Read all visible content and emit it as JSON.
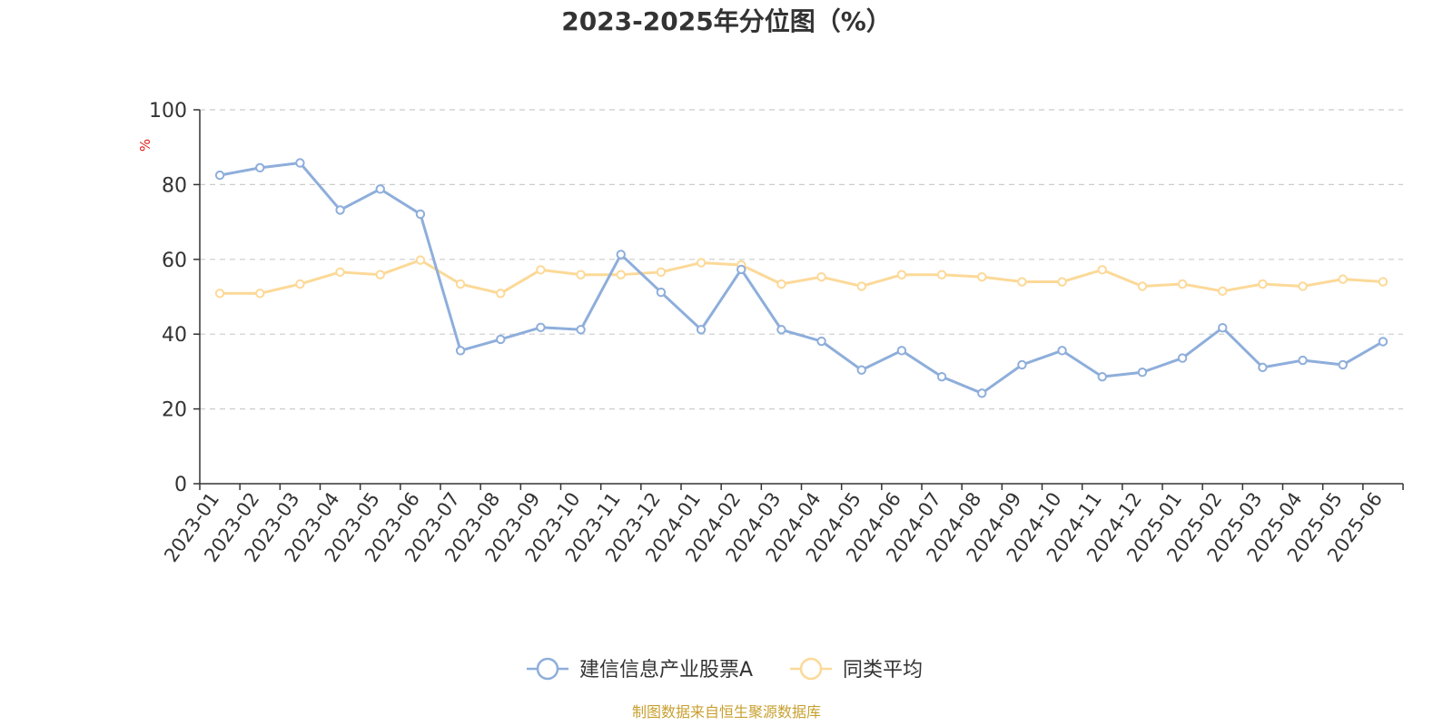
{
  "chart_data": {
    "type": "line",
    "title": "2023-2025年分位图（%）",
    "ylabel": "%",
    "xlabel": "",
    "ylim": [
      0,
      100
    ],
    "yticks": [
      0,
      20,
      40,
      60,
      80,
      100
    ],
    "grid": true,
    "legend_position": "bottom",
    "categories": [
      "2023-01",
      "2023-02",
      "2023-03",
      "2023-04",
      "2023-05",
      "2023-06",
      "2023-07",
      "2023-08",
      "2023-09",
      "2023-10",
      "2023-11",
      "2023-12",
      "2024-01",
      "2024-02",
      "2024-03",
      "2024-04",
      "2024-05",
      "2024-06",
      "2024-07",
      "2024-08",
      "2024-09",
      "2024-10",
      "2024-11",
      "2024-12",
      "2025-01",
      "2025-02",
      "2025-03",
      "2025-04",
      "2025-05",
      "2025-06"
    ],
    "series": [
      {
        "name": "建信信息产业股票A",
        "color": "#8eaedb",
        "values": [
          82.5,
          84.5,
          85.8,
          73.2,
          78.8,
          72.1,
          35.6,
          38.6,
          41.8,
          41.2,
          61.3,
          51.2,
          41.2,
          57.3,
          41.2,
          38.1,
          30.4,
          35.6,
          28.6,
          24.2,
          31.8,
          35.6,
          28.6,
          29.8,
          33.6,
          41.7,
          31.1,
          33.0,
          31.8,
          38.0
        ]
      },
      {
        "name": "同类平均",
        "color": "#fcd998",
        "values": [
          50.9,
          50.9,
          53.4,
          56.6,
          55.9,
          59.8,
          53.4,
          50.9,
          57.2,
          55.9,
          55.9,
          56.6,
          59.1,
          58.5,
          53.4,
          55.3,
          52.8,
          55.9,
          55.9,
          55.3,
          54.0,
          54.0,
          57.2,
          52.8,
          53.4,
          51.5,
          53.4,
          52.8,
          54.7,
          54.0
        ]
      }
    ]
  },
  "source_note": "制图数据来自恒生聚源数据库"
}
